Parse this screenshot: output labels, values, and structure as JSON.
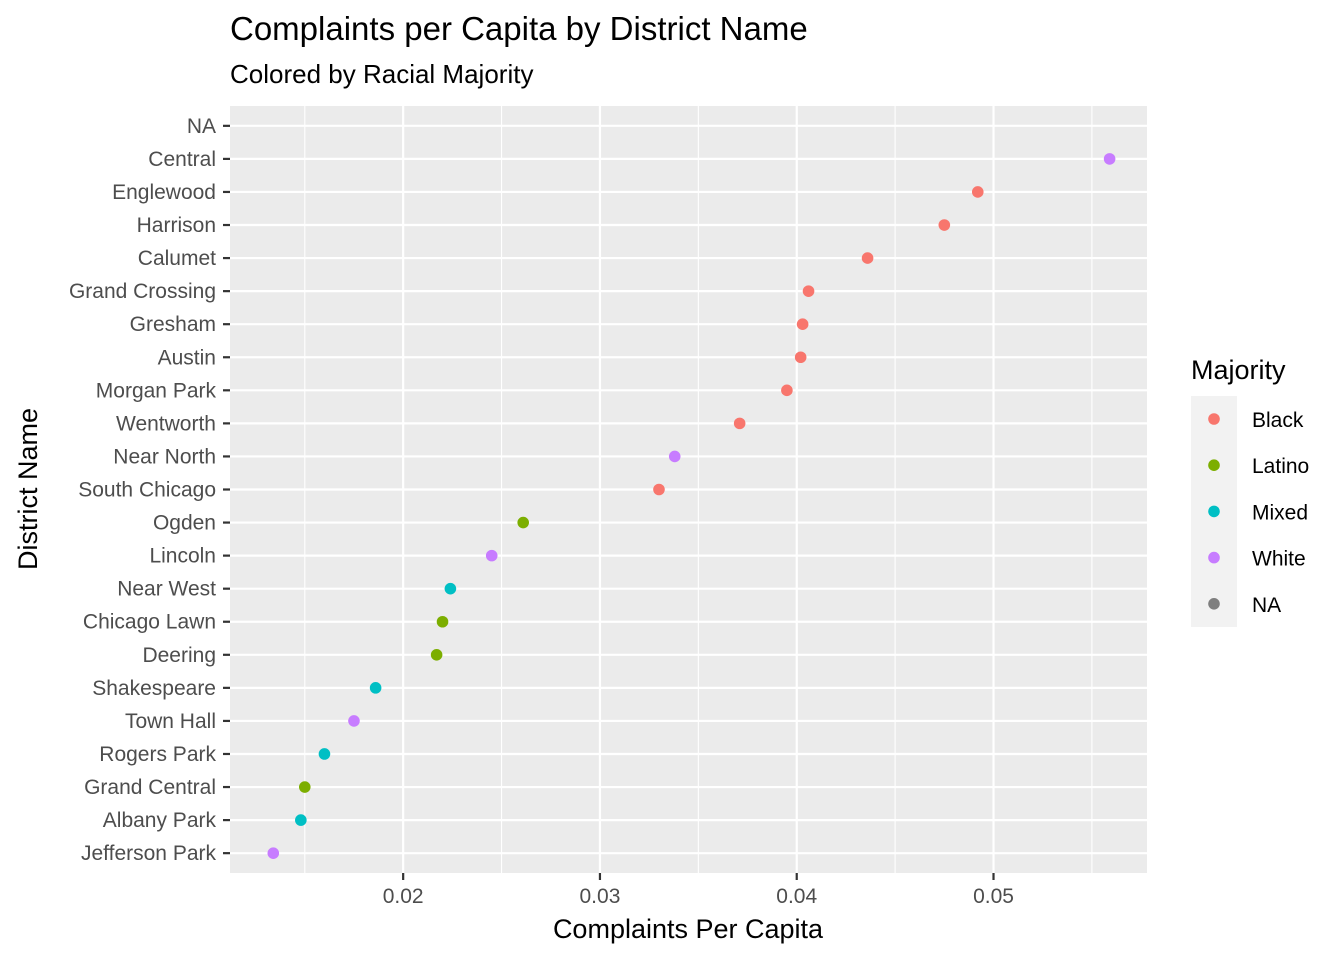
{
  "chart_data": {
    "type": "scatter",
    "title": "Complaints per Capita by District Name",
    "subtitle": "Colored by Racial Majority",
    "xlabel": "Complaints Per Capita",
    "ylabel": "District Name",
    "xlim": [
      0.0112,
      0.0578
    ],
    "x_ticks": [
      0.02,
      0.03,
      0.04,
      0.05
    ],
    "x_tick_labels": [
      "0.02",
      "0.03",
      "0.04",
      "0.05"
    ],
    "grid": true,
    "legend": {
      "title": "Majority",
      "position": "right",
      "entries": [
        {
          "label": "Black",
          "color": "#F8766D"
        },
        {
          "label": "Latino",
          "color": "#7CAE00"
        },
        {
          "label": "Mixed",
          "color": "#00BFC4"
        },
        {
          "label": "White",
          "color": "#C77CFF"
        },
        {
          "label": "NA",
          "color": "#7F7F7F"
        }
      ]
    },
    "categories": [
      "NA",
      "Central",
      "Englewood",
      "Harrison",
      "Calumet",
      "Grand Crossing",
      "Gresham",
      "Austin",
      "Morgan Park",
      "Wentworth",
      "Near North",
      "South Chicago",
      "Ogden",
      "Lincoln",
      "Near West",
      "Chicago Lawn",
      "Deering",
      "Shakespeare",
      "Town Hall",
      "Rogers Park",
      "Grand Central",
      "Albany Park",
      "Jefferson Park"
    ],
    "points": [
      {
        "district": "Central",
        "value": 0.0559,
        "majority": "White"
      },
      {
        "district": "Englewood",
        "value": 0.0492,
        "majority": "Black"
      },
      {
        "district": "Harrison",
        "value": 0.0475,
        "majority": "Black"
      },
      {
        "district": "Calumet",
        "value": 0.0436,
        "majority": "Black"
      },
      {
        "district": "Grand Crossing",
        "value": 0.0406,
        "majority": "Black"
      },
      {
        "district": "Gresham",
        "value": 0.0403,
        "majority": "Black"
      },
      {
        "district": "Austin",
        "value": 0.0402,
        "majority": "Black"
      },
      {
        "district": "Morgan Park",
        "value": 0.0395,
        "majority": "Black"
      },
      {
        "district": "Wentworth",
        "value": 0.0371,
        "majority": "Black"
      },
      {
        "district": "Near North",
        "value": 0.0338,
        "majority": "White"
      },
      {
        "district": "South Chicago",
        "value": 0.033,
        "majority": "Black"
      },
      {
        "district": "Ogden",
        "value": 0.0261,
        "majority": "Latino"
      },
      {
        "district": "Lincoln",
        "value": 0.0245,
        "majority": "White"
      },
      {
        "district": "Near West",
        "value": 0.0224,
        "majority": "Mixed"
      },
      {
        "district": "Chicago Lawn",
        "value": 0.022,
        "majority": "Latino"
      },
      {
        "district": "Deering",
        "value": 0.0217,
        "majority": "Latino"
      },
      {
        "district": "Shakespeare",
        "value": 0.0186,
        "majority": "Mixed"
      },
      {
        "district": "Town Hall",
        "value": 0.0175,
        "majority": "White"
      },
      {
        "district": "Rogers Park",
        "value": 0.016,
        "majority": "Mixed"
      },
      {
        "district": "Grand Central",
        "value": 0.015,
        "majority": "Latino"
      },
      {
        "district": "Albany Park",
        "value": 0.0148,
        "majority": "Mixed"
      },
      {
        "district": "Jefferson Park",
        "value": 0.0134,
        "majority": "White"
      }
    ]
  }
}
